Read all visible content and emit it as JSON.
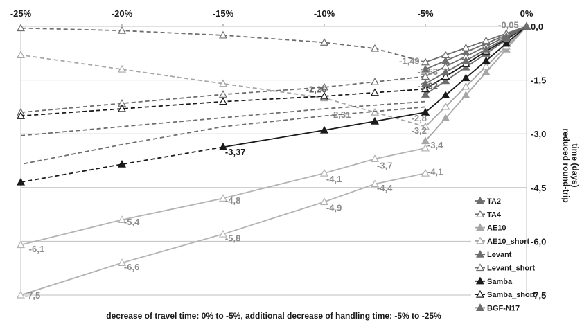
{
  "chart_data": {
    "type": "line",
    "xlabel": "decrease of  travel time: 0% to -5%,  additional decrease of handling time: -5% to -25%",
    "ylabel_lines": [
      "reduced round-trip",
      "time (days)"
    ],
    "x_ticks": [
      "-25%",
      "-20%",
      "-15%",
      "-10%",
      "-5%",
      "0%"
    ],
    "y_ticks": [
      "0,0",
      "-1,5",
      "-3,0",
      "-4,5",
      "-6,0",
      "-7,5"
    ],
    "xlim": [
      -25,
      0
    ],
    "ylim": [
      -7.5,
      0
    ],
    "grid": "horizontal",
    "legend_position": "right",
    "series": [
      {
        "name": "TA2",
        "color": "#6d6d6d",
        "marker": "filled",
        "points": [
          [
            0,
            0
          ],
          [
            -1,
            -0.24
          ],
          [
            -2,
            -0.48
          ],
          [
            -3,
            -0.72
          ],
          [
            -4,
            -0.96
          ],
          [
            -5,
            -1.2
          ]
        ]
      },
      {
        "name": "TA4",
        "color": "#6d6d6d",
        "marker": "open",
        "points": [
          [
            0,
            0
          ],
          [
            -1,
            -0.2
          ],
          [
            -2,
            -0.4
          ],
          [
            -3,
            -0.6
          ],
          [
            -4,
            -0.8
          ],
          [
            -5,
            -1.0
          ],
          [
            -7.5,
            -0.62
          ],
          [
            -10,
            -0.45
          ],
          [
            -15,
            -0.25
          ],
          [
            -20,
            -0.12
          ],
          [
            -25,
            -0.05
          ]
        ]
      },
      {
        "name": "AE10",
        "color": "#a6a6a6",
        "marker": "filled",
        "points": [
          [
            0,
            0
          ],
          [
            -1,
            -0.64
          ],
          [
            -2,
            -1.28
          ],
          [
            -3,
            -1.92
          ],
          [
            -4,
            -2.56
          ],
          [
            -5,
            -3.2
          ]
        ]
      },
      {
        "name": "AE10_short",
        "color": "#a6a6a6",
        "marker": "open",
        "points": [
          [
            0,
            0
          ],
          [
            -1,
            -0.56
          ],
          [
            -2,
            -1.12
          ],
          [
            -3,
            -1.68
          ],
          [
            -4,
            -2.24
          ],
          [
            -5,
            -2.8
          ],
          [
            -7.5,
            -2.4
          ],
          [
            -10,
            -2.0
          ],
          [
            -15,
            -1.6
          ],
          [
            -20,
            -1.2
          ],
          [
            -25,
            -0.8
          ]
        ]
      },
      {
        "name": "Levant",
        "color": "#6d6d6d",
        "marker": "filled",
        "points": [
          [
            0,
            0
          ],
          [
            -1,
            -0.38
          ],
          [
            -2,
            -0.76
          ],
          [
            -3,
            -1.14
          ],
          [
            -4,
            -1.52
          ],
          [
            -5,
            -1.9
          ]
        ]
      },
      {
        "name": "Levant_short",
        "color": "#6d6d6d",
        "marker": "open",
        "points": [
          [
            0,
            0
          ],
          [
            -1,
            -0.28
          ],
          [
            -2,
            -0.56
          ],
          [
            -3,
            -0.84
          ],
          [
            -4,
            -1.12
          ],
          [
            -5,
            -1.4
          ],
          [
            -7.5,
            -1.55
          ],
          [
            -10,
            -1.7
          ],
          [
            -15,
            -1.9
          ],
          [
            -20,
            -2.15
          ],
          [
            -25,
            -2.4
          ]
        ]
      },
      {
        "name": "Samba",
        "color": "#1a1a1a",
        "marker": "filled",
        "points": [
          [
            0,
            0
          ],
          [
            -1,
            -0.48
          ],
          [
            -2,
            -0.96
          ],
          [
            -3,
            -1.44
          ],
          [
            -4,
            -1.92
          ],
          [
            -5,
            -2.4
          ]
        ]
      },
      {
        "name": "Samba_short",
        "color": "#1a1a1a",
        "marker": "open",
        "points": [
          [
            0,
            0
          ],
          [
            -1,
            -0.35
          ],
          [
            -2,
            -0.7
          ],
          [
            -3,
            -1.05
          ],
          [
            -4,
            -1.4
          ],
          [
            -5,
            -1.75
          ],
          [
            -7.5,
            -1.85
          ],
          [
            -10,
            -1.95
          ],
          [
            -15,
            -2.1
          ],
          [
            -20,
            -2.3
          ],
          [
            -25,
            -2.5
          ]
        ]
      },
      {
        "name": "BGF-N17",
        "color": "#6d6d6d",
        "marker": "filled",
        "points": [
          [
            0,
            0
          ],
          [
            -1,
            -0.32
          ],
          [
            -2,
            -0.64
          ],
          [
            -3,
            -0.96
          ],
          [
            -4,
            -1.28
          ],
          [
            -5,
            -1.6
          ]
        ]
      }
    ],
    "extra_lines": [
      {
        "color": "#6d6d6d",
        "marker": "none",
        "dashed": true,
        "points": [
          [
            -5,
            -2.1
          ],
          [
            -10,
            -2.3
          ],
          [
            -15,
            -2.55
          ],
          [
            -20,
            -2.8
          ],
          [
            -25,
            -3.05
          ]
        ]
      },
      {
        "color": "#1a1a1a",
        "marker": "filled",
        "dashed": false,
        "points": [
          [
            -5,
            -2.4
          ],
          [
            -7.5,
            -2.65
          ],
          [
            -10,
            -2.9
          ],
          [
            -15,
            -3.37
          ]
        ]
      },
      {
        "color": "#1a1a1a",
        "marker": "filled",
        "dashed": true,
        "points": [
          [
            -15,
            -3.37
          ],
          [
            -20,
            -3.85
          ],
          [
            -25,
            -4.35
          ]
        ]
      },
      {
        "color": "#6d6d6d",
        "marker": "none",
        "dashed": true,
        "points": [
          [
            -5,
            -2.25
          ],
          [
            -10,
            -2.5
          ],
          [
            -15,
            -2.8
          ],
          [
            -20,
            -3.3
          ],
          [
            -25,
            -3.85
          ]
        ]
      },
      {
        "color": "#b3b3b3",
        "marker": "open",
        "dashed": false,
        "points": [
          [
            -5,
            -3.4
          ],
          [
            -7.5,
            -3.7
          ],
          [
            -10,
            -4.1
          ],
          [
            -15,
            -4.8
          ],
          [
            -20,
            -5.4
          ],
          [
            -25,
            -6.1
          ]
        ]
      },
      {
        "color": "#b3b3b3",
        "marker": "open",
        "dashed": false,
        "points": [
          [
            -5,
            -4.1
          ],
          [
            -7.5,
            -4.4
          ],
          [
            -10,
            -4.9
          ],
          [
            -15,
            -5.8
          ],
          [
            -20,
            -6.6
          ],
          [
            -25,
            -7.5
          ]
        ]
      }
    ],
    "data_labels": [
      {
        "text": "-0,05",
        "x": -1.4,
        "y": -0.05,
        "color": "#8c8c8c"
      },
      {
        "text": "-1,49",
        "x": -6.3,
        "y": -1.05,
        "color": "#8c8c8c"
      },
      {
        "text": "-1,53",
        "x": -5.4,
        "y": -1.35,
        "color": "#8c8c8c"
      },
      {
        "text": "-1,82",
        "x": -5.4,
        "y": -1.75,
        "color": "#666666"
      },
      {
        "text": "-2,26",
        "x": -10.9,
        "y": -1.85,
        "color": "#666666"
      },
      {
        "text": "-2,31",
        "x": -9.7,
        "y": -2.55,
        "color": "#8c8c8c"
      },
      {
        "text": "-2,8",
        "x": -5.7,
        "y": -2.65,
        "color": "#8c8c8c"
      },
      {
        "text": "-3,2",
        "x": -5.7,
        "y": -3.0,
        "color": "#8c8c8c"
      },
      {
        "text": "-3,37",
        "x": -14.9,
        "y": -3.6,
        "color": "#1a1a1a"
      },
      {
        "text": "-3,4",
        "x": -4.9,
        "y": -3.4,
        "color": "#8c8c8c"
      },
      {
        "text": "-3,7",
        "x": -7.4,
        "y": -3.97,
        "color": "#8c8c8c"
      },
      {
        "text": "-4,1",
        "x": -9.9,
        "y": -4.35,
        "color": "#8c8c8c"
      },
      {
        "text": "-4,1",
        "x": -4.9,
        "y": -4.15,
        "color": "#8c8c8c"
      },
      {
        "text": "-4,4",
        "x": -7.4,
        "y": -4.6,
        "color": "#8c8c8c"
      },
      {
        "text": "-4,8",
        "x": -14.9,
        "y": -4.95,
        "color": "#8c8c8c"
      },
      {
        "text": "-4,9",
        "x": -9.9,
        "y": -5.15,
        "color": "#8c8c8c"
      },
      {
        "text": "-5,4",
        "x": -19.9,
        "y": -5.55,
        "color": "#8c8c8c"
      },
      {
        "text": "-5,8",
        "x": -14.9,
        "y": -6.0,
        "color": "#8c8c8c"
      },
      {
        "text": "-6,1",
        "x": -24.6,
        "y": -6.3,
        "color": "#8c8c8c"
      },
      {
        "text": "-6,6",
        "x": -19.9,
        "y": -6.8,
        "color": "#8c8c8c"
      },
      {
        "text": "-7,5",
        "x": -24.8,
        "y": -7.6,
        "color": "#8c8c8c"
      }
    ]
  }
}
